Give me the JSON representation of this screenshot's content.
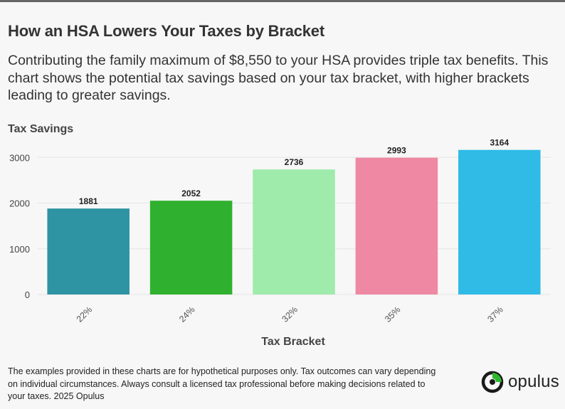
{
  "title": "How an HSA Lowers Your Taxes by Bracket",
  "subtitle": "Contributing the family maximum of $8,550 to your HSA provides triple tax benefits. This chart shows the potential tax savings based on your tax bracket, with higher brackets leading to greater savings.",
  "footer": "The examples provided in these charts are for hypothetical purposes only. Tax outcomes can vary depending on individual circumstances. Always consult a licensed tax professional before making decisions related to your taxes. 2025 Opulus",
  "brand": {
    "name": "opulus",
    "icon": "opulus-logo-icon",
    "accent": "#2eb82e"
  },
  "chart_data": {
    "type": "bar",
    "title": "How an HSA Lowers Your Taxes by Bracket",
    "xlabel": "Tax Bracket",
    "ylabel": "Tax Savings",
    "categories": [
      "22%",
      "24%",
      "32%",
      "35%",
      "37%"
    ],
    "values": [
      1881,
      2052,
      2736,
      2993,
      3164
    ],
    "colors": [
      "#2e93a3",
      "#2fb12f",
      "#9eebab",
      "#ef88a3",
      "#2fbbe6"
    ],
    "yticks": [
      0,
      1000,
      2000,
      3000
    ],
    "ylim": [
      0,
      3300
    ],
    "grid": true,
    "data_labels": true,
    "legend": "none"
  }
}
